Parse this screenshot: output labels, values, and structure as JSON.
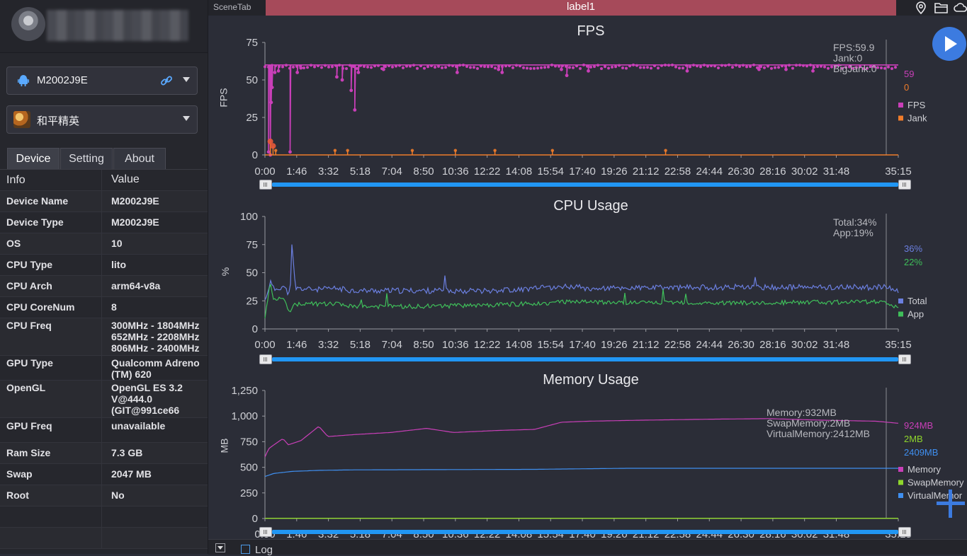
{
  "profile": {
    "name_blurred": true
  },
  "device_selector": {
    "label": "M2002J9E"
  },
  "app_selector": {
    "label": "和平精英"
  },
  "tabs": [
    {
      "label": "Device"
    },
    {
      "label": "Setting"
    },
    {
      "label": "About"
    }
  ],
  "info_table": {
    "headers": [
      "Info",
      "Value"
    ],
    "rows": [
      {
        "key": "Device Name",
        "value": "M2002J9E"
      },
      {
        "key": "Device Type",
        "value": "M2002J9E"
      },
      {
        "key": "OS",
        "value": "10"
      },
      {
        "key": "CPU Type",
        "value": "lito"
      },
      {
        "key": "CPU Arch",
        "value": "arm64-v8a"
      },
      {
        "key": "CPU CoreNum",
        "value": "8"
      },
      {
        "key": "CPU Freq",
        "value": "300MHz - 1804MHz\n652MHz - 2208MHz\n806MHz - 2400MHz"
      },
      {
        "key": "GPU Type",
        "value": "Qualcomm Adreno\n(TM) 620"
      },
      {
        "key": "OpenGL",
        "value": "OpenGL ES 3.2\nV@444.0\n(GIT@991ce66"
      },
      {
        "key": "GPU Freq",
        "value": "unavailable"
      },
      {
        "key": "Ram Size",
        "value": "7.3 GB"
      },
      {
        "key": "Swap",
        "value": "2047 MB"
      },
      {
        "key": "Root",
        "value": "No"
      }
    ]
  },
  "topbar": {
    "scene_tab": "SceneTab",
    "label": "label1"
  },
  "bottombar": {
    "log_label": "Log"
  },
  "x_ticks": [
    "0:00",
    "1:46",
    "3:32",
    "5:18",
    "7:04",
    "8:50",
    "10:36",
    "12:22",
    "14:08",
    "15:54",
    "17:40",
    "19:26",
    "21:12",
    "22:58",
    "24:44",
    "26:30",
    "28:16",
    "30:02",
    "31:48",
    "35:15"
  ],
  "chart_data": [
    {
      "type": "line",
      "title": "FPS",
      "ylabel": "FPS",
      "ylim": [
        0,
        75
      ],
      "yticks": [
        "0",
        "25",
        "50",
        "75"
      ],
      "series": [
        {
          "name": "FPS",
          "color": "#c93fb8",
          "current": "59"
        },
        {
          "name": "Jank",
          "color": "#f07c2a",
          "current": "0"
        }
      ],
      "tooltip": [
        "FPS:59.9",
        "Jank:0",
        "BigJank:0"
      ],
      "fps_base": 60,
      "fps_dips": [
        [
          0.2,
          2
        ],
        [
          0.3,
          0
        ],
        [
          0.35,
          35
        ],
        [
          0.4,
          45
        ],
        [
          0.55,
          55
        ],
        [
          0.75,
          56
        ],
        [
          1.4,
          2
        ],
        [
          1.8,
          55
        ],
        [
          2.0,
          58
        ],
        [
          4.0,
          52
        ],
        [
          4.3,
          50
        ],
        [
          4.8,
          43
        ],
        [
          5.0,
          30
        ],
        [
          5.2,
          55
        ],
        [
          6.6,
          57
        ],
        [
          10.7,
          55
        ],
        [
          13.0,
          57
        ],
        [
          13.2,
          55
        ],
        [
          16.5,
          57
        ],
        [
          16.8,
          53
        ],
        [
          18.0,
          56
        ],
        [
          23.5,
          56
        ],
        [
          27.5,
          57
        ],
        [
          29.0,
          57
        ],
        [
          30.5,
          56
        ]
      ],
      "jank_events": [
        [
          0.3,
          3
        ],
        [
          0.45,
          2
        ],
        [
          0.6,
          1
        ],
        [
          3.9,
          1
        ],
        [
          4.6,
          1
        ],
        [
          8.2,
          1
        ],
        [
          10.6,
          1
        ],
        [
          12.8,
          1
        ],
        [
          16.0,
          1
        ],
        [
          22.3,
          1
        ]
      ]
    },
    {
      "type": "line",
      "title": "CPU Usage",
      "ylabel": "%",
      "ylim": [
        0,
        100
      ],
      "yticks": [
        "0",
        "25",
        "50",
        "75",
        "100"
      ],
      "series": [
        {
          "name": "Total",
          "color": "#6b7fe0",
          "current": "36%"
        },
        {
          "name": "App",
          "color": "#3fbf5a",
          "current": "22%"
        }
      ],
      "tooltip": [
        "Total:34%",
        "App:19%"
      ],
      "total_profile": [
        [
          0,
          25
        ],
        [
          0.3,
          42
        ],
        [
          0.5,
          35
        ],
        [
          1.0,
          38
        ],
        [
          1.4,
          30
        ],
        [
          1.5,
          74
        ],
        [
          1.7,
          36
        ],
        [
          3.0,
          35
        ],
        [
          4.0,
          36
        ],
        [
          5.0,
          34
        ],
        [
          8.0,
          34
        ],
        [
          12.0,
          34
        ],
        [
          14.0,
          35
        ],
        [
          17.0,
          38
        ],
        [
          18.0,
          36
        ],
        [
          25.0,
          37
        ],
        [
          34.5,
          37
        ],
        [
          35.25,
          34
        ]
      ],
      "app_profile": [
        [
          0,
          10
        ],
        [
          0.3,
          42
        ],
        [
          0.5,
          25
        ],
        [
          1.0,
          28
        ],
        [
          1.4,
          15
        ],
        [
          1.5,
          20
        ],
        [
          2.0,
          23
        ],
        [
          3.0,
          22
        ],
        [
          4.0,
          22
        ],
        [
          5.0,
          20
        ],
        [
          8.0,
          20
        ],
        [
          12.0,
          21
        ],
        [
          14.0,
          22
        ],
        [
          17.0,
          24
        ],
        [
          25.0,
          23
        ],
        [
          34.5,
          24
        ],
        [
          35.25,
          19
        ]
      ]
    },
    {
      "type": "line",
      "title": "Memory Usage",
      "ylabel": "MB",
      "ylim": [
        0,
        1250
      ],
      "yticks": [
        "0",
        "250",
        "500",
        "750",
        "1,000",
        "1,250"
      ],
      "series": [
        {
          "name": "Memory",
          "color": "#c93fb8",
          "current": "924MB"
        },
        {
          "name": "SwapMemory",
          "color": "#8fd62c",
          "current": "2MB"
        },
        {
          "name": "VirtualMemory",
          "color": "#3f8ff0",
          "current": "2409MB"
        }
      ],
      "legend_labels": [
        "Memory",
        "SwapMemory",
        "VirtualMemor"
      ],
      "tooltip": [
        "Memory:932MB",
        "SwapMemory:2MB",
        "VirtualMemory:2412MB"
      ],
      "memory_profile": [
        [
          0,
          600
        ],
        [
          0.2,
          680
        ],
        [
          0.5,
          720
        ],
        [
          1.0,
          780
        ],
        [
          1.3,
          720
        ],
        [
          2.0,
          760
        ],
        [
          3.0,
          900
        ],
        [
          3.5,
          800
        ],
        [
          5.0,
          820
        ],
        [
          7.0,
          840
        ],
        [
          9.0,
          880
        ],
        [
          10.5,
          840
        ],
        [
          13.0,
          860
        ],
        [
          15.0,
          870
        ],
        [
          16.5,
          940
        ],
        [
          18.0,
          950
        ],
        [
          21.0,
          960
        ],
        [
          25.0,
          970
        ],
        [
          28.0,
          975
        ],
        [
          31.0,
          960
        ],
        [
          34.0,
          950
        ],
        [
          35.25,
          930
        ]
      ],
      "virtual_profile": [
        [
          0,
          410
        ],
        [
          0.5,
          440
        ],
        [
          1.5,
          460
        ],
        [
          3.0,
          470
        ],
        [
          5.0,
          475
        ],
        [
          15.0,
          480
        ],
        [
          20.0,
          490
        ],
        [
          35.25,
          490
        ]
      ],
      "swap_value": 2
    }
  ]
}
